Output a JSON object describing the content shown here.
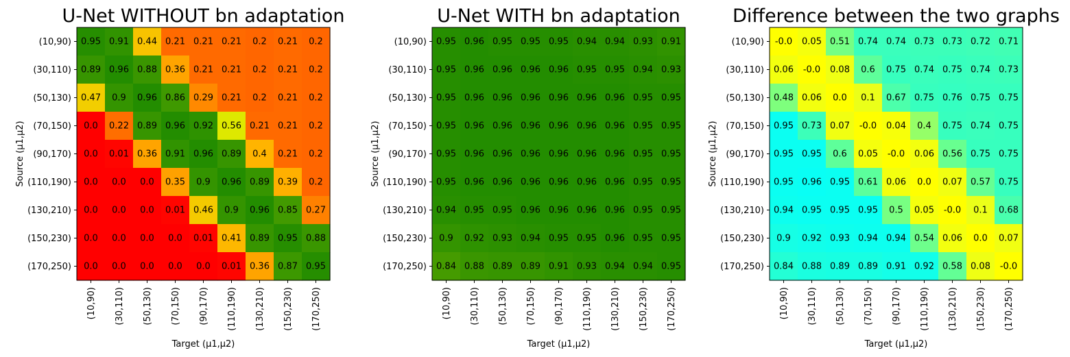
{
  "chart_data": [
    {
      "type": "heatmap",
      "title": "U-Net WITHOUT bn adaptation",
      "xlabel": "Target (μ1,μ2)",
      "ylabel": "Source (μ1,μ2)",
      "x_tick_labels": [
        "(10,90)",
        "(30,110)",
        "(50,130)",
        "(70,150)",
        "(90,170)",
        "(110,190)",
        "(130,210)",
        "(150,230)",
        "(170,250)"
      ],
      "y_tick_labels": [
        "(10,90)",
        "(30,110)",
        "(50,130)",
        "(70,150)",
        "(90,170)",
        "(110,190)",
        "(130,210)",
        "(150,230)",
        "(170,250)"
      ],
      "colormap": "red-yellow-green",
      "values": [
        [
          0.95,
          0.91,
          0.44,
          0.21,
          0.21,
          0.21,
          0.2,
          0.21,
          0.2
        ],
        [
          0.89,
          0.96,
          0.88,
          0.36,
          0.21,
          0.21,
          0.2,
          0.21,
          0.2
        ],
        [
          0.47,
          0.9,
          0.96,
          0.86,
          0.29,
          0.21,
          0.2,
          0.21,
          0.2
        ],
        [
          0.0,
          0.22,
          0.89,
          0.96,
          0.92,
          0.56,
          0.21,
          0.21,
          0.2
        ],
        [
          0.0,
          0.01,
          0.36,
          0.91,
          0.96,
          0.89,
          0.4,
          0.21,
          0.2
        ],
        [
          0.0,
          0.0,
          0.0,
          0.35,
          0.9,
          0.96,
          0.89,
          0.39,
          0.2
        ],
        [
          0.0,
          0.0,
          0.0,
          0.01,
          0.46,
          0.9,
          0.96,
          0.85,
          0.27
        ],
        [
          0.0,
          0.0,
          0.0,
          0.0,
          0.01,
          0.41,
          0.89,
          0.95,
          0.88
        ],
        [
          0.0,
          0.0,
          0.0,
          0.0,
          0.0,
          0.01,
          0.36,
          0.87,
          0.95
        ]
      ],
      "labels": [
        [
          "0.95",
          "0.91",
          "0.44",
          "0.21",
          "0.21",
          "0.21",
          "0.2",
          "0.21",
          "0.2"
        ],
        [
          "0.89",
          "0.96",
          "0.88",
          "0.36",
          "0.21",
          "0.21",
          "0.2",
          "0.21",
          "0.2"
        ],
        [
          "0.47",
          "0.9",
          "0.96",
          "0.86",
          "0.29",
          "0.21",
          "0.2",
          "0.21",
          "0.2"
        ],
        [
          "0.0",
          "0.22",
          "0.89",
          "0.96",
          "0.92",
          "0.56",
          "0.21",
          "0.21",
          "0.2"
        ],
        [
          "0.0",
          "0.01",
          "0.36",
          "0.91",
          "0.96",
          "0.89",
          "0.4",
          "0.21",
          "0.2"
        ],
        [
          "0.0",
          "0.0",
          "0.0",
          "0.35",
          "0.9",
          "0.96",
          "0.89",
          "0.39",
          "0.2"
        ],
        [
          "0.0",
          "0.0",
          "0.0",
          "0.01",
          "0.46",
          "0.9",
          "0.96",
          "0.85",
          "0.27"
        ],
        [
          "0.0",
          "0.0",
          "0.0",
          "0.0",
          "0.01",
          "0.41",
          "0.89",
          "0.95",
          "0.88"
        ],
        [
          "0.0",
          "0.0",
          "0.0",
          "0.0",
          "0.0",
          "0.01",
          "0.36",
          "0.87",
          "0.95"
        ]
      ]
    },
    {
      "type": "heatmap",
      "title": "U-Net WITH bn adaptation",
      "xlabel": "Target (μ1,μ2)",
      "ylabel": "Source (μ1,μ2)",
      "x_tick_labels": [
        "(10,90)",
        "(30,110)",
        "(50,130)",
        "(70,150)",
        "(90,170)",
        "(110,190)",
        "(130,210)",
        "(150,230)",
        "(170,250)"
      ],
      "y_tick_labels": [
        "(10,90)",
        "(30,110)",
        "(50,130)",
        "(70,150)",
        "(90,170)",
        "(110,190)",
        "(130,210)",
        "(150,230)",
        "(170,250)"
      ],
      "colormap": "red-yellow-green",
      "values": [
        [
          0.95,
          0.96,
          0.95,
          0.95,
          0.95,
          0.94,
          0.94,
          0.93,
          0.91
        ],
        [
          0.95,
          0.96,
          0.96,
          0.96,
          0.96,
          0.95,
          0.95,
          0.94,
          0.93
        ],
        [
          0.95,
          0.96,
          0.96,
          0.96,
          0.96,
          0.96,
          0.96,
          0.95,
          0.95
        ],
        [
          0.95,
          0.96,
          0.96,
          0.96,
          0.96,
          0.96,
          0.96,
          0.95,
          0.95
        ],
        [
          0.95,
          0.96,
          0.96,
          0.96,
          0.96,
          0.96,
          0.96,
          0.95,
          0.95
        ],
        [
          0.95,
          0.96,
          0.96,
          0.96,
          0.96,
          0.96,
          0.96,
          0.95,
          0.95
        ],
        [
          0.94,
          0.95,
          0.95,
          0.96,
          0.96,
          0.96,
          0.96,
          0.95,
          0.95
        ],
        [
          0.9,
          0.92,
          0.93,
          0.94,
          0.95,
          0.95,
          0.96,
          0.95,
          0.95
        ],
        [
          0.84,
          0.88,
          0.89,
          0.89,
          0.91,
          0.93,
          0.94,
          0.94,
          0.95
        ]
      ],
      "labels": [
        [
          "0.95",
          "0.96",
          "0.95",
          "0.95",
          "0.95",
          "0.94",
          "0.94",
          "0.93",
          "0.91"
        ],
        [
          "0.95",
          "0.96",
          "0.96",
          "0.96",
          "0.96",
          "0.95",
          "0.95",
          "0.94",
          "0.93"
        ],
        [
          "0.95",
          "0.96",
          "0.96",
          "0.96",
          "0.96",
          "0.96",
          "0.96",
          "0.95",
          "0.95"
        ],
        [
          "0.95",
          "0.96",
          "0.96",
          "0.96",
          "0.96",
          "0.96",
          "0.96",
          "0.95",
          "0.95"
        ],
        [
          "0.95",
          "0.96",
          "0.96",
          "0.96",
          "0.96",
          "0.96",
          "0.96",
          "0.95",
          "0.95"
        ],
        [
          "0.95",
          "0.96",
          "0.96",
          "0.96",
          "0.96",
          "0.96",
          "0.96",
          "0.95",
          "0.95"
        ],
        [
          "0.94",
          "0.95",
          "0.95",
          "0.96",
          "0.96",
          "0.96",
          "0.96",
          "0.95",
          "0.95"
        ],
        [
          "0.9",
          "0.92",
          "0.93",
          "0.94",
          "0.95",
          "0.95",
          "0.96",
          "0.95",
          "0.95"
        ],
        [
          "0.84",
          "0.88",
          "0.89",
          "0.89",
          "0.91",
          "0.93",
          "0.94",
          "0.94",
          "0.95"
        ]
      ]
    },
    {
      "type": "heatmap",
      "title": "Difference between the two graphs",
      "xlabel": "Target (μ1,μ2)",
      "ylabel": "Source (μ1,μ2)",
      "x_tick_labels": [
        "(10,90)",
        "(30,110)",
        "(50,130)",
        "(70,150)",
        "(90,170)",
        "(110,190)",
        "(130,210)",
        "(150,230)",
        "(170,250)"
      ],
      "y_tick_labels": [
        "(10,90)",
        "(30,110)",
        "(50,130)",
        "(70,150)",
        "(90,170)",
        "(110,190)",
        "(130,210)",
        "(150,230)",
        "(170,250)"
      ],
      "colormap": "yellow-green-cyan",
      "values": [
        [
          -0.0,
          0.05,
          0.51,
          0.74,
          0.74,
          0.73,
          0.73,
          0.72,
          0.71
        ],
        [
          0.06,
          -0.0,
          0.08,
          0.6,
          0.75,
          0.74,
          0.75,
          0.74,
          0.73
        ],
        [
          0.48,
          0.06,
          0.0,
          0.1,
          0.67,
          0.75,
          0.76,
          0.75,
          0.75
        ],
        [
          0.95,
          0.73,
          0.07,
          -0.0,
          0.04,
          0.4,
          0.75,
          0.74,
          0.75
        ],
        [
          0.95,
          0.95,
          0.6,
          0.05,
          -0.0,
          0.06,
          0.56,
          0.75,
          0.75
        ],
        [
          0.95,
          0.96,
          0.95,
          0.61,
          0.06,
          0.0,
          0.07,
          0.57,
          0.75
        ],
        [
          0.94,
          0.95,
          0.95,
          0.95,
          0.5,
          0.05,
          -0.0,
          0.1,
          0.68
        ],
        [
          0.9,
          0.92,
          0.93,
          0.94,
          0.94,
          0.54,
          0.06,
          0.0,
          0.07
        ],
        [
          0.84,
          0.88,
          0.89,
          0.89,
          0.91,
          0.92,
          0.58,
          0.08,
          -0.0
        ]
      ],
      "labels": [
        [
          "-0.0",
          "0.05",
          "0.51",
          "0.74",
          "0.74",
          "0.73",
          "0.73",
          "0.72",
          "0.71"
        ],
        [
          "0.06",
          "-0.0",
          "0.08",
          "0.6",
          "0.75",
          "0.74",
          "0.75",
          "0.74",
          "0.73"
        ],
        [
          "0.48",
          "0.06",
          "0.0",
          "0.1",
          "0.67",
          "0.75",
          "0.76",
          "0.75",
          "0.75"
        ],
        [
          "0.95",
          "0.73",
          "0.07",
          "-0.0",
          "0.04",
          "0.4",
          "0.75",
          "0.74",
          "0.75"
        ],
        [
          "0.95",
          "0.95",
          "0.6",
          "0.05",
          "-0.0",
          "0.06",
          "0.56",
          "0.75",
          "0.75"
        ],
        [
          "0.95",
          "0.96",
          "0.95",
          "0.61",
          "0.06",
          "0.0",
          "0.07",
          "0.57",
          "0.75"
        ],
        [
          "0.94",
          "0.95",
          "0.95",
          "0.95",
          "0.5",
          "0.05",
          "-0.0",
          "0.1",
          "0.68"
        ],
        [
          "0.9",
          "0.92",
          "0.93",
          "0.94",
          "0.94",
          "0.54",
          "0.06",
          "0.0",
          "0.07"
        ],
        [
          "0.84",
          "0.88",
          "0.89",
          "0.89",
          "0.91",
          "0.92",
          "0.58",
          "0.08",
          "-0.0"
        ]
      ]
    }
  ]
}
